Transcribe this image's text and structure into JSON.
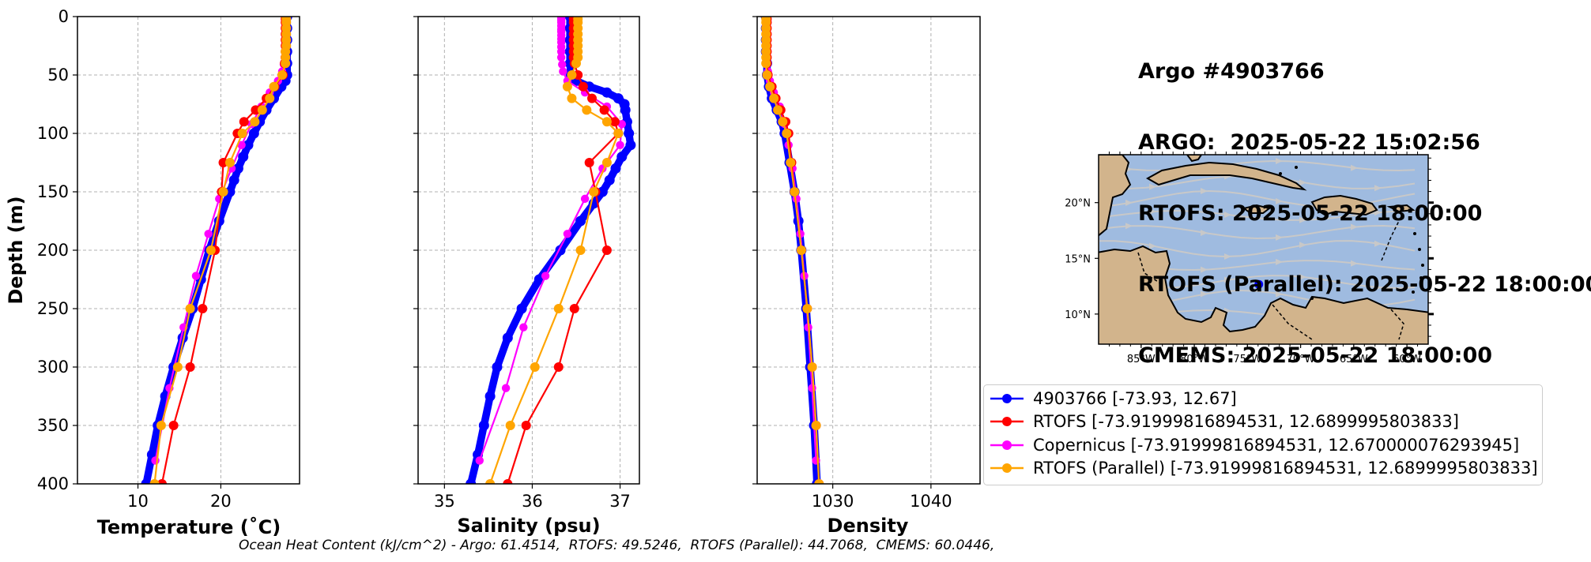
{
  "title_lines": [
    "Argo #4903766",
    "ARGO:  2025-05-22 15:02:56",
    "RTOFS: 2025-05-22 18:00:00",
    "RTOFS (Parallel): 2025-05-22 18:00:00",
    "CMEMS: 2025-05-22 18:00:00"
  ],
  "footer": "Ocean Heat Content (kJ/cm^2) - Argo: 61.4514,  RTOFS: 49.5246,  RTOFS (Parallel): 44.7068,  CMEMS: 60.0446,",
  "colors": {
    "argo": "#0000ff",
    "rtofs": "#ff0000",
    "copernicus": "#ff00ff",
    "rtofs_parallel": "#ffa500",
    "ocean": "#9fbbe0",
    "land": "#d2b48c",
    "stream": "#c8c8c8"
  },
  "legend": [
    {
      "label": "4903766 [-73.93, 12.67]",
      "color": "#0000ff"
    },
    {
      "label": "RTOFS [-73.91999816894531, 12.6899995803833]",
      "color": "#ff0000"
    },
    {
      "label": "Copernicus [-73.91999816894531, 12.670000076293945]",
      "color": "#ff00ff"
    },
    {
      "label": "RTOFS (Parallel) [-73.91999816894531, 12.6899995803833]",
      "color": "#ffa500"
    }
  ],
  "chart_data": [
    {
      "type": "line",
      "xlabel": "Temperature (˚C)",
      "ylabel": "Depth (m)",
      "xlim": [
        2.7,
        29.5
      ],
      "ylim": [
        400,
        0
      ],
      "xticks": [
        10,
        20
      ],
      "yticks": [
        0,
        50,
        100,
        150,
        200,
        250,
        300,
        350,
        400
      ],
      "grid": true,
      "series": [
        {
          "name": "4903766 [-73.93, 12.67]",
          "key": "argo",
          "depth": [
            0,
            10,
            20,
            30,
            40,
            50,
            55,
            60,
            70,
            80,
            90,
            100,
            110,
            120,
            130,
            140,
            150,
            175,
            200,
            225,
            250,
            275,
            300,
            325,
            350,
            375,
            400
          ],
          "values": [
            28.0,
            28.0,
            28.0,
            28.0,
            28.0,
            28.0,
            27.8,
            27.3,
            26.4,
            25.5,
            24.7,
            24.0,
            23.3,
            22.7,
            22.1,
            21.6,
            21.1,
            19.8,
            18.6,
            17.6,
            16.6,
            15.4,
            14.3,
            13.3,
            12.4,
            11.7,
            11.0
          ]
        },
        {
          "name": "RTOFS [-73.91999816894531, 12.6899995803833]",
          "key": "rtofs",
          "depth": [
            2,
            5,
            10,
            15,
            20,
            25,
            30,
            35,
            40,
            50,
            60,
            70,
            80,
            90,
            100,
            125,
            150,
            200,
            250,
            300,
            350,
            400
          ],
          "values": [
            27.8,
            27.8,
            27.8,
            27.8,
            27.8,
            27.8,
            27.8,
            27.8,
            27.7,
            27.5,
            26.5,
            25.5,
            24.2,
            22.8,
            22.0,
            20.3,
            20.1,
            19.3,
            17.8,
            16.3,
            14.3,
            12.9
          ]
        },
        {
          "name": "Copernicus [-73.91999816894531, 12.670000076293945]",
          "key": "copernicus",
          "depth": [
            1,
            3,
            5,
            8,
            11,
            13,
            16,
            19,
            22,
            26,
            30,
            35,
            41,
            47,
            55,
            65,
            77,
            92,
            110,
            130,
            156,
            186,
            222,
            266,
            318,
            380
          ],
          "values": [
            27.8,
            27.8,
            27.8,
            27.8,
            27.8,
            27.8,
            27.8,
            27.8,
            27.8,
            27.8,
            27.8,
            27.7,
            27.6,
            27.4,
            26.9,
            25.9,
            24.9,
            23.7,
            22.5,
            21.3,
            19.8,
            18.5,
            17.0,
            15.5,
            13.8,
            12.1
          ]
        },
        {
          "name": "RTOFS (Parallel) [-73.91999816894531, 12.6899995803833]",
          "key": "rtofs_parallel",
          "depth": [
            2,
            5,
            10,
            15,
            20,
            25,
            30,
            35,
            40,
            50,
            60,
            70,
            80,
            90,
            100,
            125,
            150,
            200,
            250,
            300,
            350,
            400
          ],
          "values": [
            27.9,
            27.9,
            27.9,
            27.9,
            27.9,
            27.9,
            27.8,
            27.8,
            27.8,
            27.4,
            26.4,
            25.9,
            25.0,
            24.1,
            22.6,
            21.1,
            20.3,
            18.8,
            16.3,
            14.8,
            12.8,
            12.0
          ]
        }
      ]
    },
    {
      "type": "line",
      "xlabel": "Salinity (psu)",
      "xlim": [
        34.7,
        37.22
      ],
      "ylim": [
        400,
        0
      ],
      "xticks": [
        35,
        36,
        37
      ],
      "yticks": [
        0,
        50,
        100,
        150,
        200,
        250,
        300,
        350,
        400
      ],
      "grid": true,
      "series": [
        {
          "name": "4903766 [-73.93, 12.67]",
          "key": "argo",
          "depth": [
            0,
            10,
            20,
            30,
            40,
            50,
            55,
            60,
            65,
            70,
            75,
            80,
            90,
            100,
            110,
            120,
            130,
            140,
            150,
            160,
            175,
            200,
            225,
            250,
            275,
            300,
            325,
            350,
            375,
            400
          ],
          "values": [
            36.43,
            36.43,
            36.43,
            36.43,
            36.43,
            36.44,
            36.5,
            36.65,
            36.85,
            36.98,
            37.05,
            37.06,
            37.08,
            37.1,
            37.12,
            37.02,
            36.95,
            36.88,
            36.8,
            36.7,
            36.55,
            36.32,
            36.08,
            35.88,
            35.72,
            35.6,
            35.52,
            35.45,
            35.38,
            35.3
          ]
        },
        {
          "name": "RTOFS [-73.91999816894531, 12.6899995803833]",
          "key": "rtofs",
          "depth": [
            2,
            5,
            10,
            15,
            20,
            25,
            30,
            35,
            40,
            50,
            60,
            70,
            80,
            90,
            100,
            125,
            150,
            200,
            250,
            300,
            350,
            400
          ],
          "values": [
            36.47,
            36.47,
            36.47,
            36.47,
            36.47,
            36.47,
            36.47,
            36.47,
            36.48,
            36.52,
            36.58,
            36.68,
            36.82,
            36.94,
            36.98,
            36.65,
            36.72,
            36.85,
            36.48,
            36.3,
            35.93,
            35.72
          ]
        },
        {
          "name": "Copernicus [-73.91999816894531, 12.670000076293945]",
          "key": "copernicus",
          "depth": [
            1,
            3,
            5,
            8,
            11,
            13,
            16,
            19,
            22,
            26,
            30,
            35,
            41,
            47,
            55,
            65,
            77,
            92,
            110,
            130,
            156,
            186,
            222,
            266,
            318,
            380
          ],
          "values": [
            36.33,
            36.33,
            36.33,
            36.33,
            36.33,
            36.33,
            36.33,
            36.33,
            36.33,
            36.33,
            36.33,
            36.33,
            36.34,
            36.35,
            36.4,
            36.6,
            36.85,
            37.02,
            37.0,
            36.8,
            36.6,
            36.4,
            36.15,
            35.9,
            35.7,
            35.4
          ]
        },
        {
          "name": "RTOFS (Parallel) [-73.91999816894531, 12.6899995803833]",
          "key": "rtofs_parallel",
          "depth": [
            2,
            5,
            10,
            15,
            20,
            25,
            30,
            35,
            40,
            50,
            60,
            70,
            80,
            90,
            100,
            125,
            150,
            200,
            250,
            300,
            350,
            400
          ],
          "values": [
            36.52,
            36.52,
            36.52,
            36.52,
            36.52,
            36.52,
            36.52,
            36.52,
            36.5,
            36.45,
            36.4,
            36.45,
            36.62,
            36.85,
            36.98,
            36.85,
            36.7,
            36.55,
            36.3,
            36.03,
            35.75,
            35.52
          ]
        }
      ]
    },
    {
      "type": "line",
      "xlabel": "Density",
      "xlim": [
        1022.3,
        1045.0
      ],
      "ylim": [
        400,
        0
      ],
      "xticks": [
        1030,
        1040
      ],
      "yticks": [
        0,
        50,
        100,
        150,
        200,
        250,
        300,
        350,
        400
      ],
      "grid": true,
      "series": [
        {
          "name": "4903766 [-73.93, 12.67]",
          "key": "argo",
          "depth": [
            0,
            10,
            20,
            30,
            40,
            50,
            60,
            70,
            80,
            90,
            100,
            125,
            150,
            175,
            200,
            250,
            300,
            350,
            400
          ],
          "values": [
            1023.2,
            1023.2,
            1023.2,
            1023.2,
            1023.3,
            1023.3,
            1023.5,
            1023.8,
            1024.3,
            1024.8,
            1025.1,
            1025.6,
            1026.1,
            1026.5,
            1026.8,
            1027.3,
            1027.7,
            1028.1,
            1028.4
          ]
        },
        {
          "name": "RTOFS [-73.91999816894531, 12.6899995803833]",
          "key": "rtofs",
          "depth": [
            2,
            5,
            10,
            15,
            20,
            25,
            30,
            35,
            40,
            50,
            60,
            70,
            80,
            90,
            100,
            125,
            150,
            200,
            250,
            300,
            350,
            400
          ],
          "values": [
            1023.3,
            1023.3,
            1023.3,
            1023.3,
            1023.3,
            1023.3,
            1023.3,
            1023.3,
            1023.3,
            1023.4,
            1023.8,
            1024.2,
            1024.7,
            1025.2,
            1025.5,
            1025.8,
            1026.1,
            1026.8,
            1027.4,
            1027.9,
            1028.3,
            1028.6
          ]
        },
        {
          "name": "Copernicus [-73.91999816894531, 12.670000076293945]",
          "key": "copernicus",
          "depth": [
            1,
            3,
            5,
            8,
            11,
            13,
            16,
            19,
            22,
            26,
            30,
            35,
            41,
            47,
            55,
            65,
            77,
            92,
            110,
            130,
            156,
            186,
            222,
            266,
            318,
            380
          ],
          "values": [
            1023.2,
            1023.2,
            1023.2,
            1023.2,
            1023.2,
            1023.2,
            1023.2,
            1023.2,
            1023.2,
            1023.2,
            1023.2,
            1023.2,
            1023.3,
            1023.4,
            1023.6,
            1024.0,
            1024.6,
            1025.1,
            1025.5,
            1025.9,
            1026.3,
            1026.7,
            1027.1,
            1027.5,
            1027.9,
            1028.3
          ]
        },
        {
          "name": "RTOFS (Parallel) [-73.91999816894531, 12.6899995803833]",
          "key": "rtofs_parallel",
          "depth": [
            2,
            5,
            10,
            15,
            20,
            25,
            30,
            35,
            40,
            50,
            60,
            70,
            80,
            90,
            100,
            125,
            150,
            200,
            250,
            300,
            350,
            400
          ],
          "values": [
            1023.2,
            1023.2,
            1023.2,
            1023.2,
            1023.2,
            1023.2,
            1023.2,
            1023.2,
            1023.2,
            1023.3,
            1023.6,
            1024.0,
            1024.4,
            1024.9,
            1025.3,
            1025.7,
            1026.1,
            1026.8,
            1027.4,
            1027.9,
            1028.3,
            1028.6
          ]
        }
      ]
    },
    {
      "type": "map",
      "lon_range": [
        -89.0,
        -58.0
      ],
      "lat_range": [
        7.3,
        24.3
      ],
      "xticks": [
        -85,
        -80,
        -75,
        -70,
        -65,
        -60
      ],
      "xtick_labels": [
        "85°W",
        "80°W",
        "75°W",
        "70°W",
        "65°W",
        "60°W"
      ],
      "yticks": [
        10,
        15,
        20
      ],
      "ytick_labels": [
        "10°N",
        "15°N",
        "20°N"
      ],
      "marker": {
        "lon": -73.93,
        "lat": 12.67
      }
    }
  ]
}
